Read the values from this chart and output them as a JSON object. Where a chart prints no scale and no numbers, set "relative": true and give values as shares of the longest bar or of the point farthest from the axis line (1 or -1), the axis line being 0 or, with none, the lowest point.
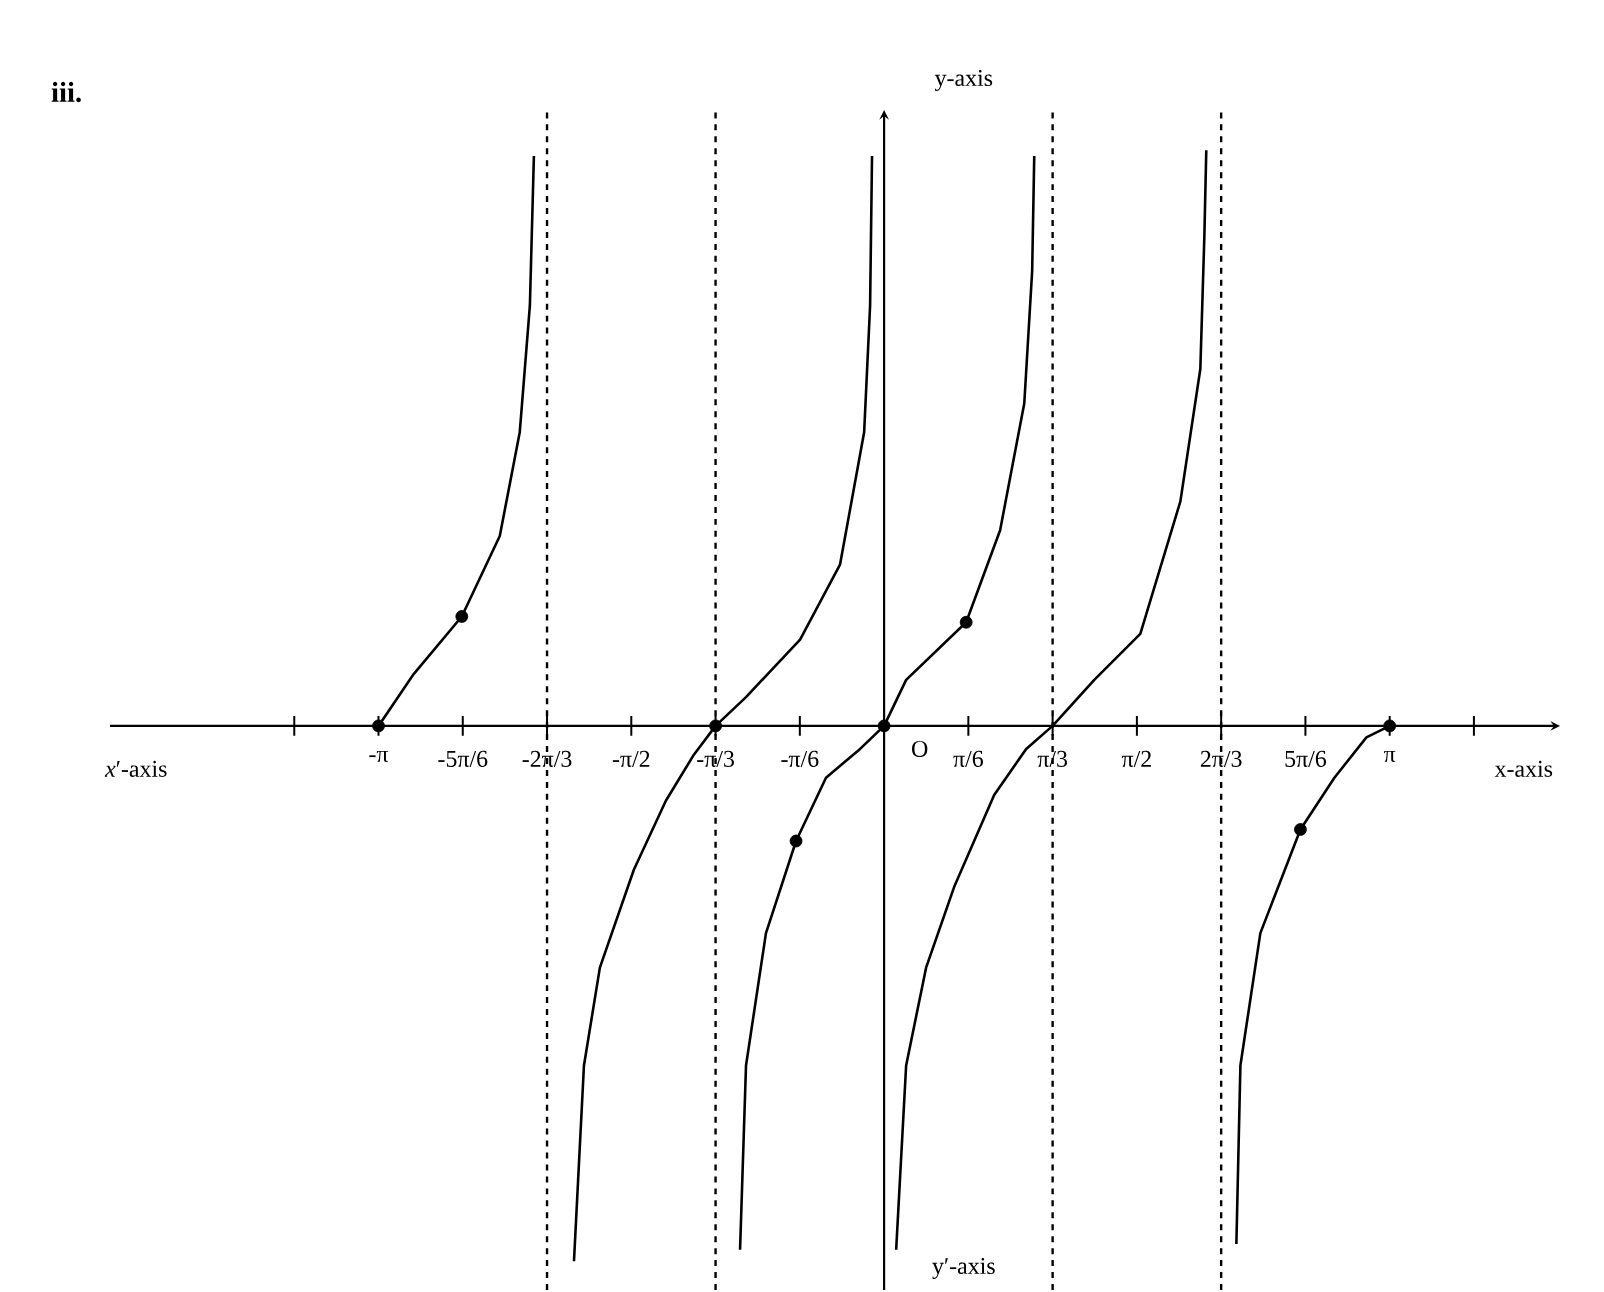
{
  "chart_data": {
    "type": "line",
    "title": "iii.",
    "xlabel": "x-axis",
    "ylabel": "y-axis",
    "annotations": [
      "*x*′-axis",
      "y′-axis",
      "O"
    ],
    "relative": true,
    "marker": "none",
    "line_style": "solid",
    "grid": false,
    "tick_labels": "x",
    "xlim": [
      -4.81,
      4.2
    ],
    "xticks": [
      {
        "value": -3.665,
        "label": null
      },
      {
        "value": -3.1416,
        "label": "-π"
      },
      {
        "value": -2.618,
        "label": "-5π/6"
      },
      {
        "value": -2.0944,
        "label": "-2π/3"
      },
      {
        "value": -1.5708,
        "label": "-π/2"
      },
      {
        "value": -1.0472,
        "label": "-π/3"
      },
      {
        "value": -0.5236,
        "label": "-π/6"
      },
      {
        "value": 0.5236,
        "label": "π/6"
      },
      {
        "value": 1.0472,
        "label": "π/3"
      },
      {
        "value": 1.5708,
        "label": "π/2"
      },
      {
        "value": 2.0944,
        "label": "2π/3"
      },
      {
        "value": 2.618,
        "label": "5π/6"
      },
      {
        "value": 3.1416,
        "label": "π"
      },
      {
        "value": 3.665,
        "label": null
      }
    ],
    "ref_lines": [
      {
        "axis": "x",
        "value": -2.0944,
        "line_style": "dashed",
        "color": "#000000"
      },
      {
        "axis": "x",
        "value": -1.0472,
        "line_style": "dashed",
        "color": "#000000"
      },
      {
        "axis": "x",
        "value": 1.0472,
        "line_style": "dashed",
        "color": "#000000"
      },
      {
        "axis": "x",
        "value": 2.0944,
        "line_style": "dashed",
        "color": "#000000"
      }
    ],
    "series": [
      {
        "color": "#000000",
        "x": [
          -3.1416,
          -2.923,
          -2.624,
          -2.388,
          -2.264,
          -2.201,
          -2.176
        ],
        "values": [
          0,
          0.09,
          0.19,
          0.33,
          0.51,
          0.73,
          0.99
        ]
      },
      {
        "color": "#000000",
        "x": [
          -1.927,
          -1.865,
          -1.766,
          -1.555,
          -1.356,
          -1.182,
          -1.047,
          -0.858,
          -0.522,
          -0.274,
          -0.124,
          -0.087,
          -0.075
        ],
        "values": [
          -0.93,
          -0.59,
          -0.42,
          -0.25,
          -0.13,
          -0.05,
          0,
          0.05,
          0.15,
          0.28,
          0.51,
          0.73,
          0.99
        ]
      },
      {
        "color": "#000000",
        "x": [
          -0.895,
          -0.858,
          -0.734,
          -0.547,
          -0.361,
          -0.149,
          0,
          0.137,
          0.51,
          0.721,
          0.871,
          0.92,
          0.933
        ],
        "values": [
          -0.91,
          -0.59,
          -0.36,
          -0.2,
          -0.09,
          -0.04,
          0,
          0.08,
          0.18,
          0.34,
          0.56,
          0.79,
          0.99
        ]
      },
      {
        "color": "#000000",
        "x": [
          0.075,
          0.137,
          0.261,
          0.435,
          0.684,
          0.883,
          1.047,
          1.306,
          1.592,
          1.841,
          1.965,
          1.99,
          2.002
        ],
        "values": [
          -0.91,
          -0.59,
          -0.42,
          -0.28,
          -0.12,
          -0.04,
          0,
          0.08,
          0.16,
          0.39,
          0.62,
          0.85,
          1.0
        ]
      },
      {
        "color": "#000000",
        "x": [
          2.189,
          2.214,
          2.338,
          2.587,
          2.798,
          2.997,
          3.1416
        ],
        "values": [
          -0.9,
          -0.59,
          -0.36,
          -0.18,
          -0.09,
          -0.02,
          0
        ]
      },
      {
        "type": "scatter",
        "marker": "circle",
        "color": "#000000",
        "x": [
          -3.1416,
          -2.624,
          -1.047,
          -0.547,
          0,
          0.51,
          2.587,
          3.1416
        ],
        "values": [
          0,
          0.19,
          0,
          -0.2,
          0,
          0.18,
          -0.18,
          0
        ]
      }
    ]
  }
}
